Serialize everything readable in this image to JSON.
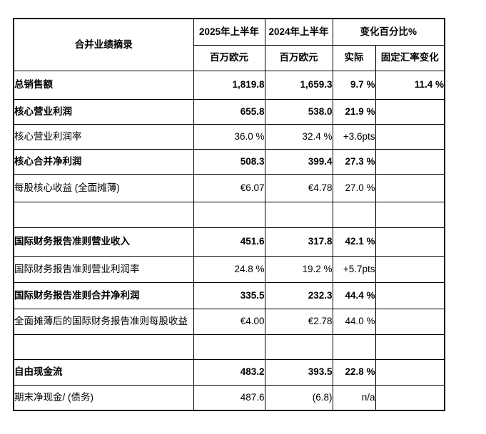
{
  "table": {
    "corner_header": "合并业绩摘录",
    "columns": {
      "period_2025": "2025年上半年",
      "period_2024": "2024年上半年",
      "change_pct": "变化百分比%",
      "unit_2025": "百万欧元",
      "unit_2024": "百万欧元",
      "actual": "实际",
      "fx_change": "固定汇率变化"
    },
    "rows": [
      {
        "label": "总销售额",
        "v2025": "1,819.8",
        "v2024": "1,659.3",
        "actual": "9.7 %",
        "fx": "11.4 %",
        "bold": true
      },
      {
        "label": "核心营业利润",
        "v2025": "655.8",
        "v2024": "538.0",
        "actual": "21.9 %",
        "fx": "",
        "bold": true
      },
      {
        "label": "核心营业利润率",
        "v2025": "36.0 %",
        "v2024": "32.4 %",
        "actual": "+3.6pts",
        "fx": "",
        "bold": false
      },
      {
        "label": "核心合并净利润",
        "v2025": "508.3",
        "v2024": "399.4",
        "actual": "27.3 %",
        "fx": "",
        "bold": true
      },
      {
        "label": "每股核心收益 (全面摊薄)",
        "v2025": "€6.07",
        "v2024": "€4.78",
        "actual": "27.0 %",
        "fx": "",
        "bold": false
      },
      {
        "label": "",
        "v2025": "",
        "v2024": "",
        "actual": "",
        "fx": "",
        "bold": false
      },
      {
        "label": "国际财务报告准则营业收入",
        "v2025": "451.6",
        "v2024": "317.8",
        "actual": "42.1 %",
        "fx": "",
        "bold": true
      },
      {
        "label": "国际财务报告准则营业利润率",
        "v2025": "24.8 %",
        "v2024": "19.2 %",
        "actual": "+5.7pts",
        "fx": "",
        "bold": false
      },
      {
        "label": "国际财务报告准则合并净利润",
        "v2025": "335.5",
        "v2024": "232.3",
        "actual": "44.4 %",
        "fx": "",
        "bold": true
      },
      {
        "label": "全面摊薄后的国际财务报告准则每股收益",
        "v2025": "€4.00",
        "v2024": "€2.78",
        "actual": "44.0 %",
        "fx": "",
        "bold": false
      },
      {
        "label": "",
        "v2025": "",
        "v2024": "",
        "actual": "",
        "fx": "",
        "bold": false
      },
      {
        "label": "自由现金流",
        "v2025": "483.2",
        "v2024": "393.5",
        "actual": "22.8 %",
        "fx": "",
        "bold": true
      },
      {
        "label": "期末净现金/ (债务)",
        "v2025": "487.6",
        "v2024": "(6.8)",
        "actual": "n/a",
        "fx": "",
        "bold": false
      }
    ]
  },
  "colors": {
    "border": "#000000",
    "text": "#000000",
    "background": "#ffffff"
  }
}
